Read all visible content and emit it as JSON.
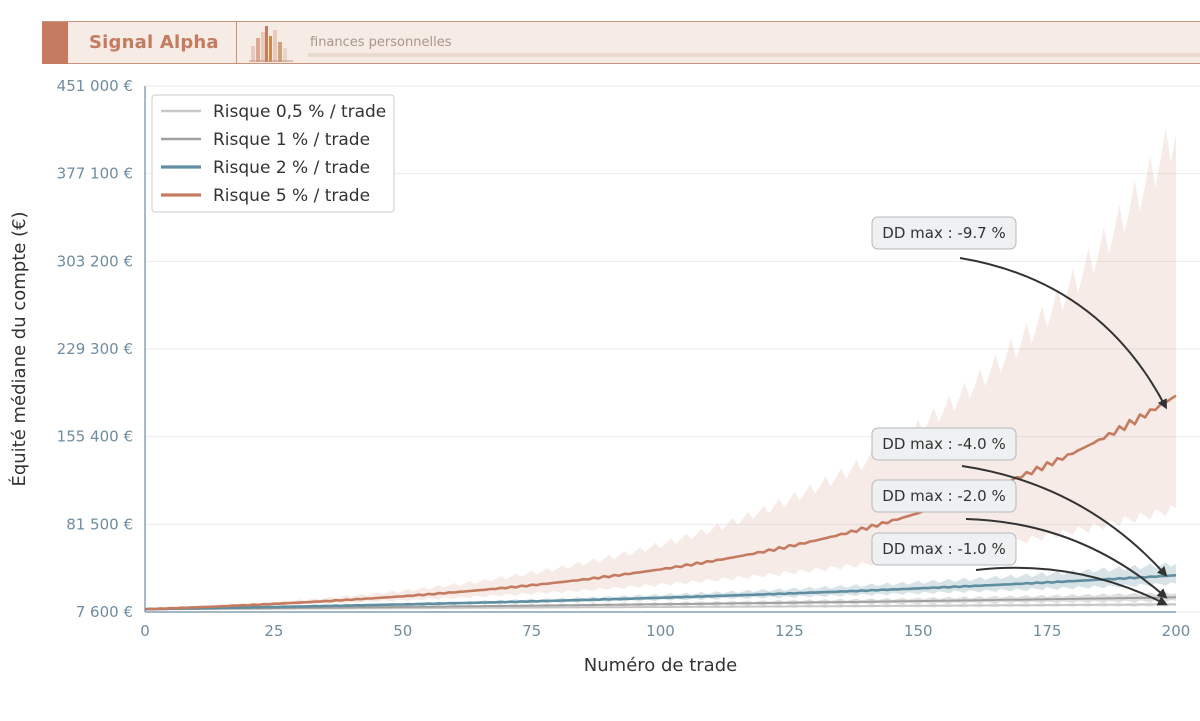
{
  "header": {
    "brand": "Signal Alpha",
    "tagline": "finances personnelles",
    "logo_icon": "bar-chart-logo-icon",
    "accent_color": "#c47b60"
  },
  "chart_data": {
    "type": "line",
    "title": "",
    "xlabel": "Numéro de trade",
    "ylabel": "Équité médiane du compte (€)",
    "xlim": [
      0,
      200
    ],
    "ylim": [
      7600,
      451000
    ],
    "xticks": [
      0,
      25,
      50,
      75,
      100,
      125,
      150,
      175,
      200
    ],
    "xtick_labels": [
      "0",
      "25",
      "50",
      "75",
      "100",
      "125",
      "150",
      "175",
      "200"
    ],
    "yticks": [
      7600,
      81500,
      155400,
      229300,
      303200,
      377100,
      451000
    ],
    "ytick_labels": [
      "7 600 €",
      "81 500 €",
      "155 400 €",
      "229 300 €",
      "303 200 €",
      "377 100 €",
      "451 000 €"
    ],
    "grid": "horizontal",
    "legend_position": "top-left",
    "series": [
      {
        "name": "Risque 0,5 % / trade",
        "color": "#c8c8c8",
        "start": 10000,
        "end": 14000,
        "band_low_end": 12500,
        "band_high_end": 15500,
        "annotation": "DD max : -1.0 %"
      },
      {
        "name": "Risque 1 % / trade",
        "color": "#a0a0a0",
        "start": 10000,
        "end": 20000,
        "band_low_end": 17000,
        "band_high_end": 23500,
        "annotation": "DD max : -2.0 %"
      },
      {
        "name": "Risque 2 % / trade",
        "color": "#5f8ea0",
        "start": 10000,
        "end": 38500,
        "band_low_end": 31500,
        "band_high_end": 48000,
        "annotation": "DD max : -4.0 %"
      },
      {
        "name": "Risque 5 % / trade",
        "color": "#c47b60",
        "start": 10000,
        "end": 190000,
        "band_low_end": 95000,
        "band_high_end": 410000,
        "annotation": "DD max : -9.7 %"
      }
    ]
  }
}
